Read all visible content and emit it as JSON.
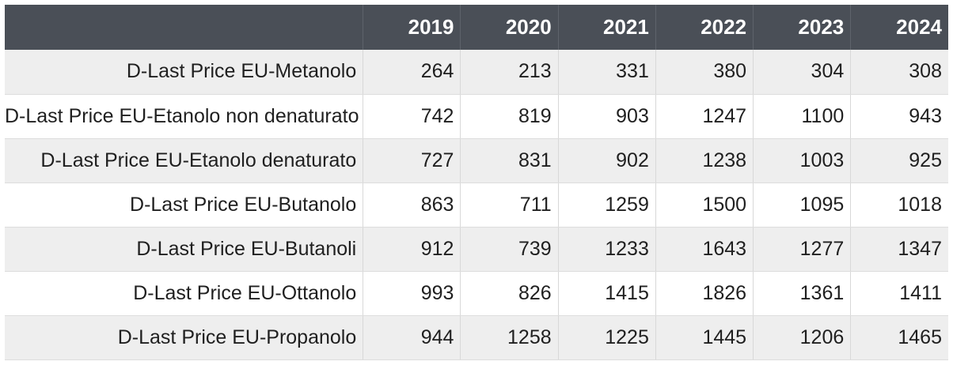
{
  "chart_data": {
    "type": "table",
    "columns": [
      "",
      "2019",
      "2020",
      "2021",
      "2022",
      "2023",
      "2024"
    ],
    "rows": [
      {
        "label": "D-Last Price EU-Metanolo",
        "values": [
          "264",
          "213",
          "331",
          "380",
          "304",
          "308"
        ]
      },
      {
        "label": "D-Last Price EU-Etanolo non denaturato",
        "values": [
          "742",
          "819",
          "903",
          "1247",
          "1100",
          "943"
        ]
      },
      {
        "label": "D-Last Price EU-Etanolo denaturato",
        "values": [
          "727",
          "831",
          "902",
          "1238",
          "1003",
          "925"
        ]
      },
      {
        "label": "D-Last Price EU-Butanolo",
        "values": [
          "863",
          "711",
          "1259",
          "1500",
          "1095",
          "1018"
        ]
      },
      {
        "label": "D-Last Price EU-Butanoli",
        "values": [
          "912",
          "739",
          "1233",
          "1643",
          "1277",
          "1347"
        ]
      },
      {
        "label": "D-Last Price EU-Ottanolo",
        "values": [
          "993",
          "826",
          "1415",
          "1826",
          "1361",
          "1411"
        ]
      },
      {
        "label": "D-Last Price EU-Propanolo",
        "values": [
          "944",
          "1258",
          "1225",
          "1445",
          "1206",
          "1465"
        ]
      }
    ]
  },
  "colors": {
    "header_bg": "#4a4f57",
    "header_text": "#ffffff",
    "row_alt_bg": "#eeeeee",
    "row_bg": "#ffffff"
  }
}
